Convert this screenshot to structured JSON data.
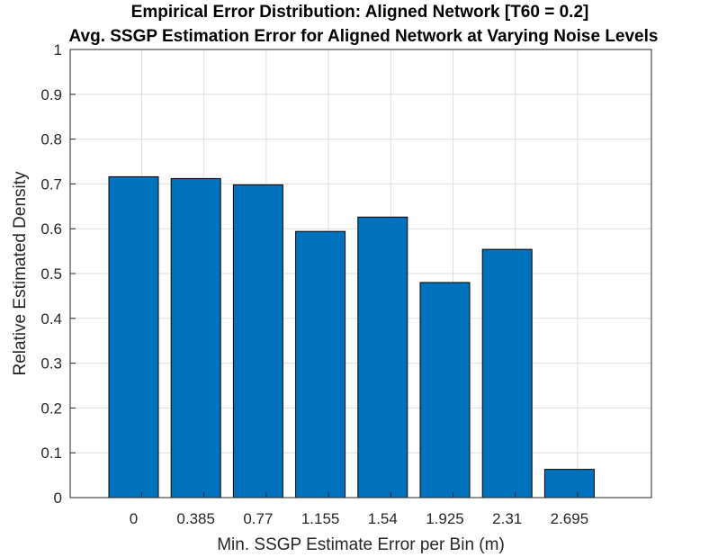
{
  "chart_data": {
    "type": "bar",
    "title": "Empirical Error Distribution: Aligned Network [T60 = 0.2]",
    "subtitle": "Avg. SSGP Estimation Error for Aligned Network at Varying Noise Levels",
    "xlabel": "Min. SSGP Estimate Error per Bin (m)",
    "ylabel": "Relative Estimated Density",
    "categories": [
      "0",
      "0.385",
      "0.77",
      "1.155",
      "1.54",
      "1.925",
      "2.31",
      "2.695"
    ],
    "values": [
      0.716,
      0.712,
      0.698,
      0.594,
      0.626,
      0.48,
      0.554,
      0.063
    ],
    "ylim": [
      0,
      1
    ],
    "yticks": [
      "0",
      "0.1",
      "0.2",
      "0.3",
      "0.4",
      "0.5",
      "0.6",
      "0.7",
      "0.8",
      "0.9",
      "1"
    ],
    "grid": true,
    "colors": {
      "bar": "#0072BD",
      "bar_edge": "#000000",
      "grid": "#dfdfdf",
      "axis": "#262626"
    }
  }
}
